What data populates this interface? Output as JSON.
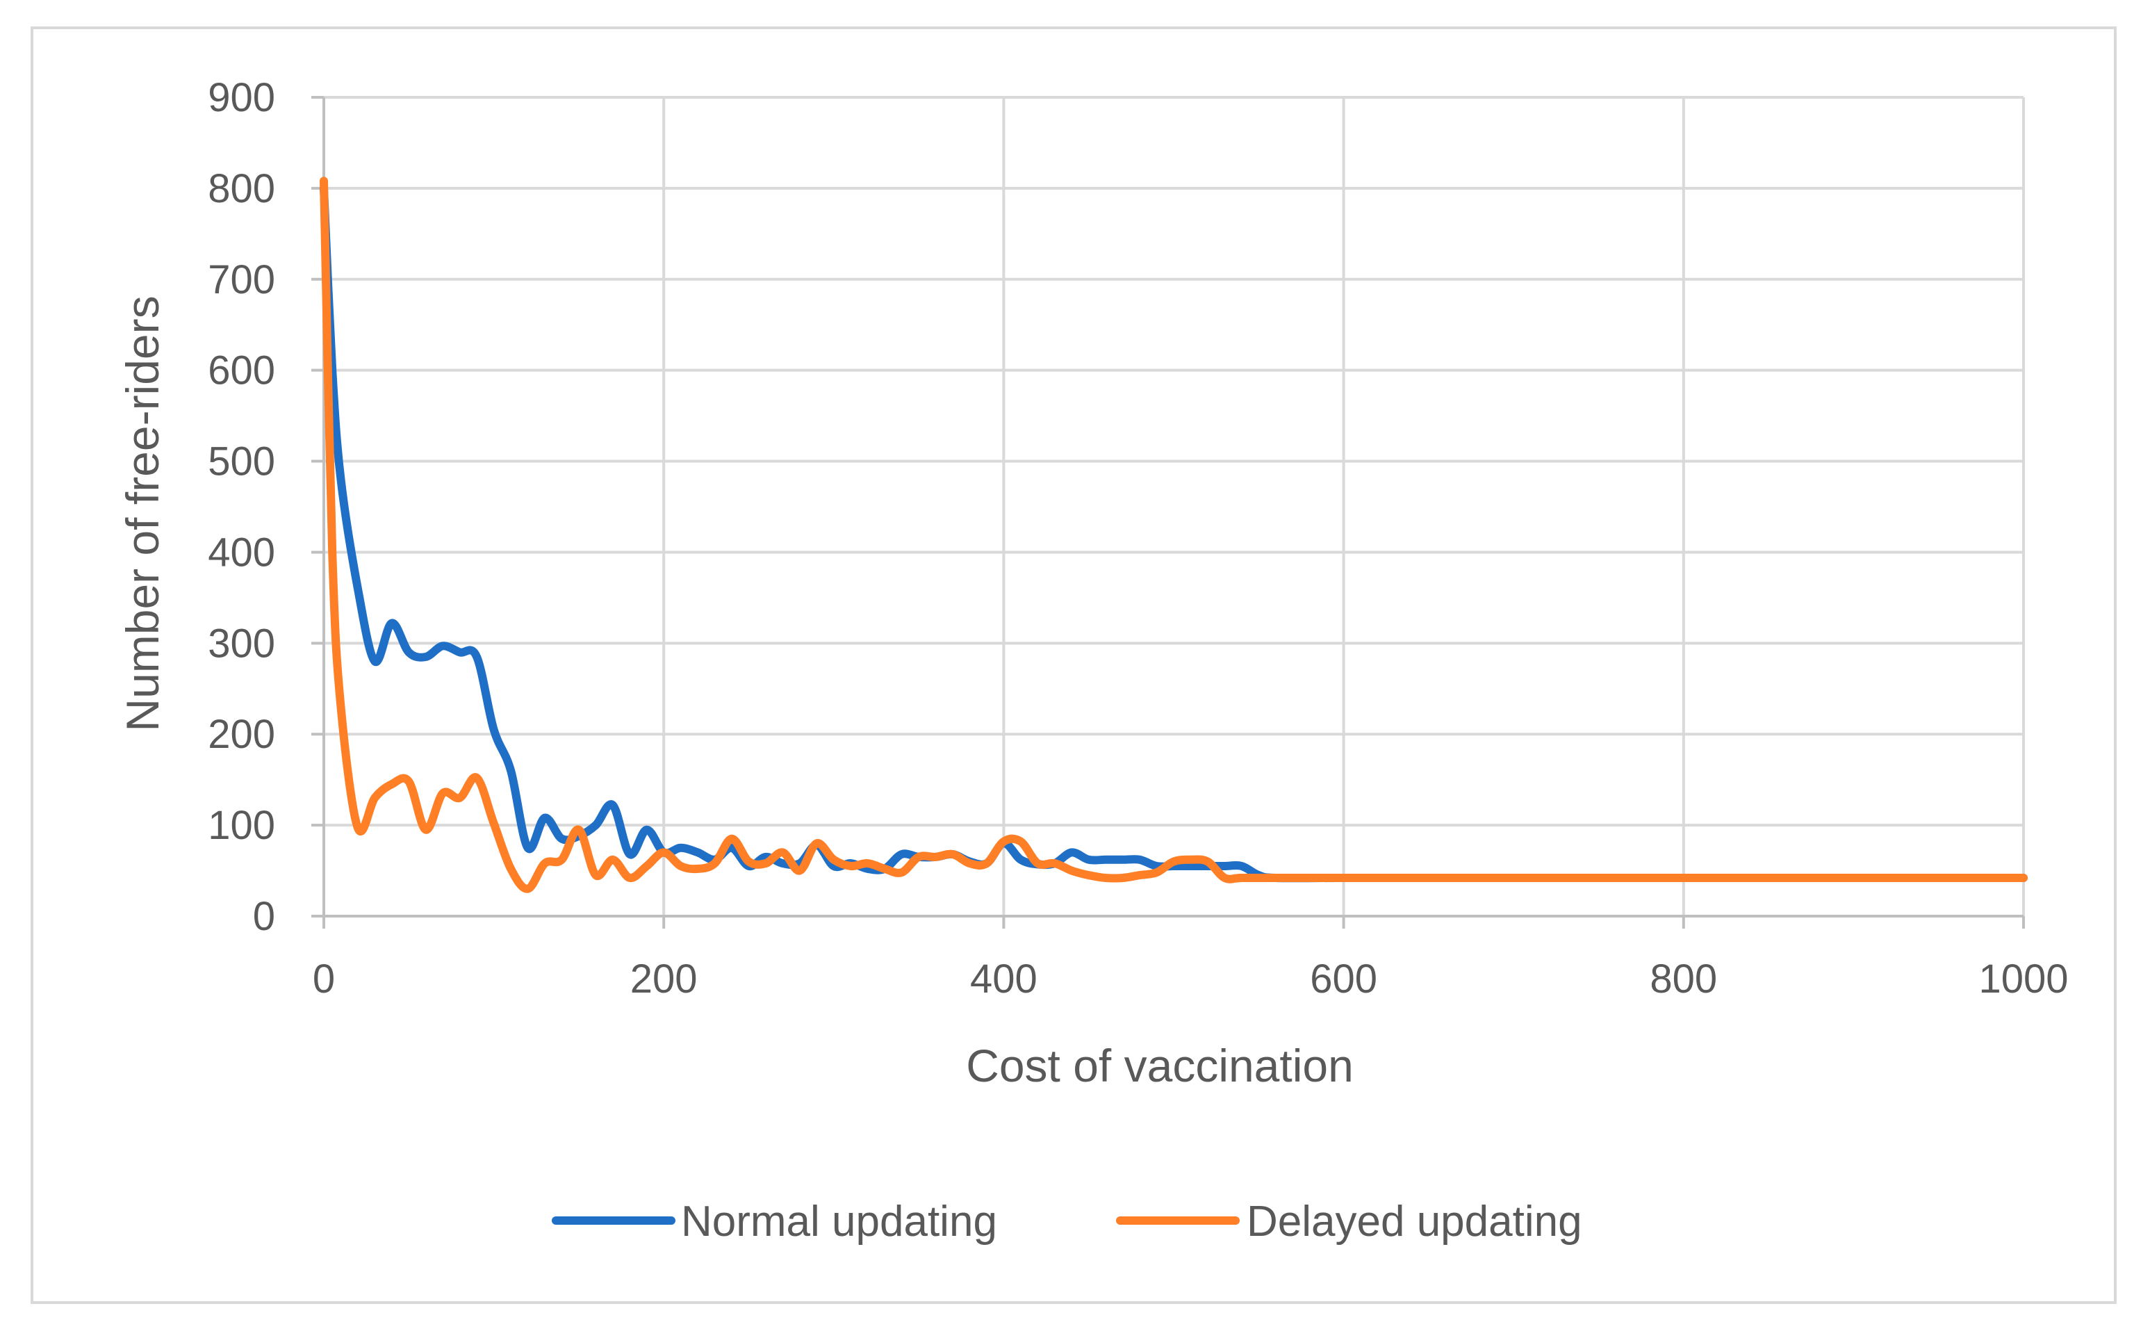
{
  "chart_data": {
    "type": "line",
    "title": "",
    "xlabel": "Cost of vaccination",
    "ylabel": "Number of free-riders",
    "xlim": [
      0,
      1000
    ],
    "ylim": [
      0,
      900
    ],
    "x_ticks": [
      0,
      200,
      400,
      600,
      800,
      1000
    ],
    "y_ticks": [
      0,
      100,
      200,
      300,
      400,
      500,
      600,
      700,
      800,
      900
    ],
    "grid": true,
    "legend_position": "bottom-center",
    "series": [
      {
        "name": "Normal updating",
        "color": "#1f6fc6",
        "points": [
          [
            0,
            800
          ],
          [
            5,
            600
          ],
          [
            10,
            480
          ],
          [
            20,
            360
          ],
          [
            30,
            280
          ],
          [
            40,
            322
          ],
          [
            50,
            290
          ],
          [
            60,
            285
          ],
          [
            70,
            297
          ],
          [
            80,
            290
          ],
          [
            90,
            285
          ],
          [
            100,
            205
          ],
          [
            110,
            160
          ],
          [
            120,
            75
          ],
          [
            130,
            108
          ],
          [
            140,
            85
          ],
          [
            150,
            88
          ],
          [
            160,
            100
          ],
          [
            170,
            122
          ],
          [
            180,
            68
          ],
          [
            190,
            95
          ],
          [
            200,
            70
          ],
          [
            210,
            75
          ],
          [
            220,
            70
          ],
          [
            230,
            62
          ],
          [
            240,
            75
          ],
          [
            250,
            55
          ],
          [
            260,
            65
          ],
          [
            270,
            58
          ],
          [
            280,
            58
          ],
          [
            290,
            78
          ],
          [
            300,
            55
          ],
          [
            310,
            58
          ],
          [
            320,
            52
          ],
          [
            330,
            52
          ],
          [
            340,
            68
          ],
          [
            350,
            65
          ],
          [
            360,
            65
          ],
          [
            370,
            68
          ],
          [
            380,
            60
          ],
          [
            390,
            58
          ],
          [
            400,
            80
          ],
          [
            410,
            62
          ],
          [
            420,
            57
          ],
          [
            430,
            58
          ],
          [
            440,
            70
          ],
          [
            450,
            62
          ],
          [
            460,
            62
          ],
          [
            470,
            62
          ],
          [
            480,
            62
          ],
          [
            490,
            55
          ],
          [
            500,
            55
          ],
          [
            510,
            55
          ],
          [
            520,
            55
          ],
          [
            530,
            55
          ],
          [
            540,
            55
          ],
          [
            550,
            45
          ],
          [
            560,
            42
          ],
          [
            600,
            42
          ],
          [
            700,
            42
          ],
          [
            800,
            42
          ],
          [
            900,
            42
          ],
          [
            1000,
            42
          ]
        ]
      },
      {
        "name": "Delayed updating",
        "color": "#ff7f27",
        "points": [
          [
            0,
            808
          ],
          [
            5,
            400
          ],
          [
            10,
            230
          ],
          [
            20,
            97
          ],
          [
            30,
            130
          ],
          [
            40,
            145
          ],
          [
            50,
            148
          ],
          [
            60,
            95
          ],
          [
            70,
            135
          ],
          [
            80,
            130
          ],
          [
            90,
            152
          ],
          [
            100,
            102
          ],
          [
            110,
            52
          ],
          [
            120,
            30
          ],
          [
            130,
            58
          ],
          [
            140,
            62
          ],
          [
            150,
            95
          ],
          [
            160,
            45
          ],
          [
            170,
            62
          ],
          [
            180,
            42
          ],
          [
            190,
            55
          ],
          [
            200,
            70
          ],
          [
            210,
            55
          ],
          [
            220,
            52
          ],
          [
            230,
            58
          ],
          [
            240,
            85
          ],
          [
            250,
            60
          ],
          [
            260,
            58
          ],
          [
            270,
            70
          ],
          [
            280,
            50
          ],
          [
            290,
            80
          ],
          [
            300,
            62
          ],
          [
            310,
            55
          ],
          [
            320,
            58
          ],
          [
            330,
            52
          ],
          [
            340,
            48
          ],
          [
            350,
            65
          ],
          [
            360,
            65
          ],
          [
            370,
            68
          ],
          [
            380,
            58
          ],
          [
            390,
            58
          ],
          [
            400,
            82
          ],
          [
            410,
            82
          ],
          [
            420,
            58
          ],
          [
            430,
            58
          ],
          [
            440,
            50
          ],
          [
            450,
            45
          ],
          [
            460,
            42
          ],
          [
            470,
            42
          ],
          [
            480,
            45
          ],
          [
            490,
            48
          ],
          [
            500,
            60
          ],
          [
            510,
            62
          ],
          [
            520,
            60
          ],
          [
            530,
            42
          ],
          [
            540,
            42
          ],
          [
            560,
            42
          ],
          [
            600,
            42
          ],
          [
            700,
            42
          ],
          [
            800,
            42
          ],
          [
            900,
            42
          ],
          [
            1000,
            42
          ]
        ]
      }
    ]
  }
}
